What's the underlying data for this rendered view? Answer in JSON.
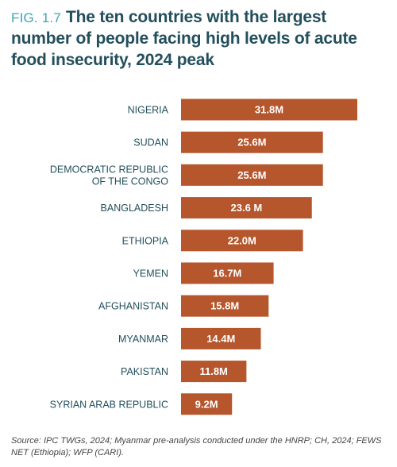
{
  "figure": {
    "label": "FIG. 1.7",
    "title": "The ten countries with the largest number of people facing high levels of acute food insecurity, 2024 peak",
    "source": "Source: IPC TWGs, 2024; Myanmar pre-analysis conducted under the HNRP; CH, 2024; FEWS NET (Ethiopia); WFP (CARI)."
  },
  "colors": {
    "bar": "#b5562d",
    "bar_label": "#ffffff",
    "category_label": "#234f5c",
    "fig_label": "#3aa6b4",
    "title": "#234f5c"
  },
  "chart_data": {
    "type": "bar",
    "orientation": "horizontal",
    "categories": [
      [
        "NIGERIA"
      ],
      [
        "SUDAN"
      ],
      [
        "DEMOCRATIC REPUBLIC",
        "OF THE CONGO"
      ],
      [
        "BANGLADESH"
      ],
      [
        "ETHIOPIA"
      ],
      [
        "YEMEN"
      ],
      [
        "AFGHANISTAN"
      ],
      [
        "MYANMAR"
      ],
      [
        "PAKISTAN"
      ],
      [
        "SYRIAN ARAB REPUBLIC"
      ]
    ],
    "values": [
      31.8,
      25.6,
      25.6,
      23.6,
      22.0,
      16.7,
      15.8,
      14.4,
      11.8,
      9.2
    ],
    "data_labels": [
      "31.8M",
      "25.6M",
      "25.6M",
      "23.6 M",
      "22.0M",
      "16.7M",
      "15.8M",
      "14.4M",
      "11.8M",
      "9.2M"
    ],
    "unit": "M",
    "grid": false,
    "legend": false
  }
}
